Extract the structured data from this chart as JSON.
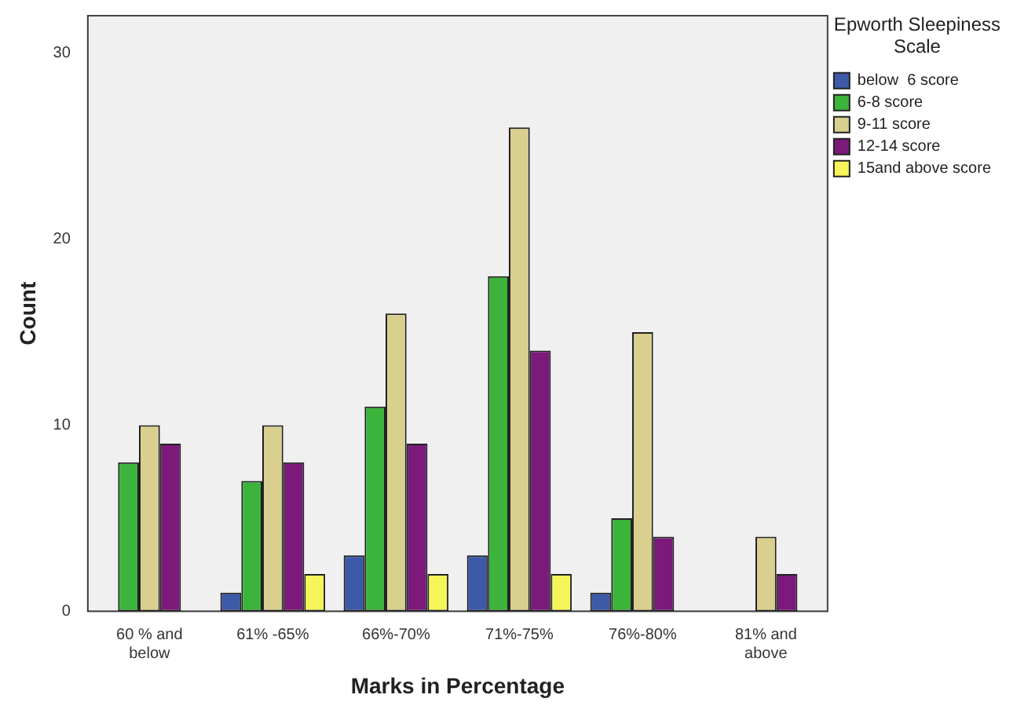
{
  "chart_data": {
    "type": "bar",
    "xlabel": "Marks in Percentage",
    "ylabel": "Count",
    "legend_title": "Epworth Sleepiness Scale",
    "categories": [
      "60 % and below",
      "61% -65%",
      "66%-70%",
      "71%-75%",
      "76%-80%",
      "81% and above"
    ],
    "series": [
      {
        "name": "below  6 score",
        "color": "#3c5aa8",
        "values": [
          0,
          1,
          3,
          3,
          1,
          0
        ]
      },
      {
        "name": "6-8 score",
        "color": "#3cb43c",
        "values": [
          8,
          7,
          11,
          18,
          5,
          0
        ]
      },
      {
        "name": "9-11 score",
        "color": "#d9cf8f",
        "values": [
          10,
          10,
          16,
          26,
          15,
          4
        ]
      },
      {
        "name": "12-14 score",
        "color": "#7b1a7b",
        "values": [
          9,
          8,
          9,
          14,
          4,
          2
        ]
      },
      {
        "name": "15and above score",
        "color": "#f5f55a",
        "values": [
          0,
          2,
          2,
          2,
          0,
          0
        ]
      }
    ],
    "ylim": [
      0,
      32
    ],
    "yticks": [
      0,
      10,
      20,
      30
    ],
    "grid": false,
    "legend": "top right"
  }
}
